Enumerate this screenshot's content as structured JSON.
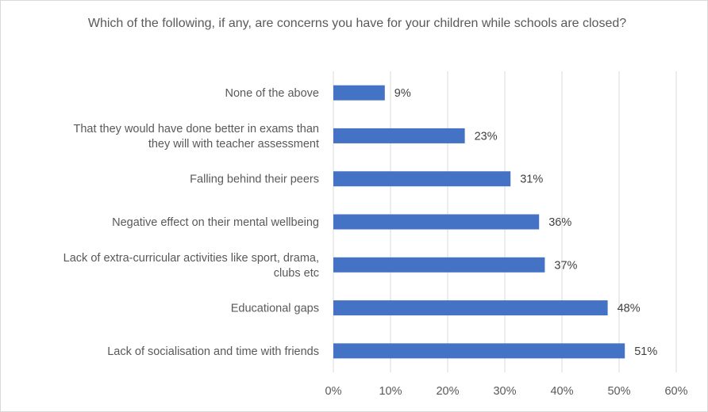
{
  "chart_data": {
    "type": "bar",
    "orientation": "horizontal",
    "title": "Which of the following, if any, are concerns you have for your children while schools are closed?",
    "xlabel": "",
    "ylabel": "",
    "xlim": [
      0,
      60
    ],
    "x_ticks": [
      "0%",
      "10%",
      "20%",
      "30%",
      "40%",
      "50%",
      "60%"
    ],
    "grid": true,
    "legend": "none",
    "bar_color": "#4472c4",
    "categories": [
      "None of the above",
      "That they would have done better in exams than they will with teacher assessment",
      "Falling behind their peers",
      "Negative effect on their mental wellbeing",
      "Lack of extra-curricular activities like sport, drama, clubs etc",
      "Educational gaps",
      "Lack of socialisation and time with friends"
    ],
    "category_lines": [
      [
        "None of the above"
      ],
      [
        "That they would have done better in exams than",
        "they will with teacher assessment"
      ],
      [
        "Falling behind their peers"
      ],
      [
        "Negative effect on their mental wellbeing"
      ],
      [
        "Lack of extra-curricular activities like sport, drama,",
        "clubs etc"
      ],
      [
        "Educational gaps"
      ],
      [
        "Lack of socialisation and time with friends"
      ]
    ],
    "values": [
      9,
      23,
      31,
      36,
      37,
      48,
      51
    ],
    "data_labels": [
      "9%",
      "23%",
      "31%",
      "36%",
      "37%",
      "48%",
      "51%"
    ]
  }
}
